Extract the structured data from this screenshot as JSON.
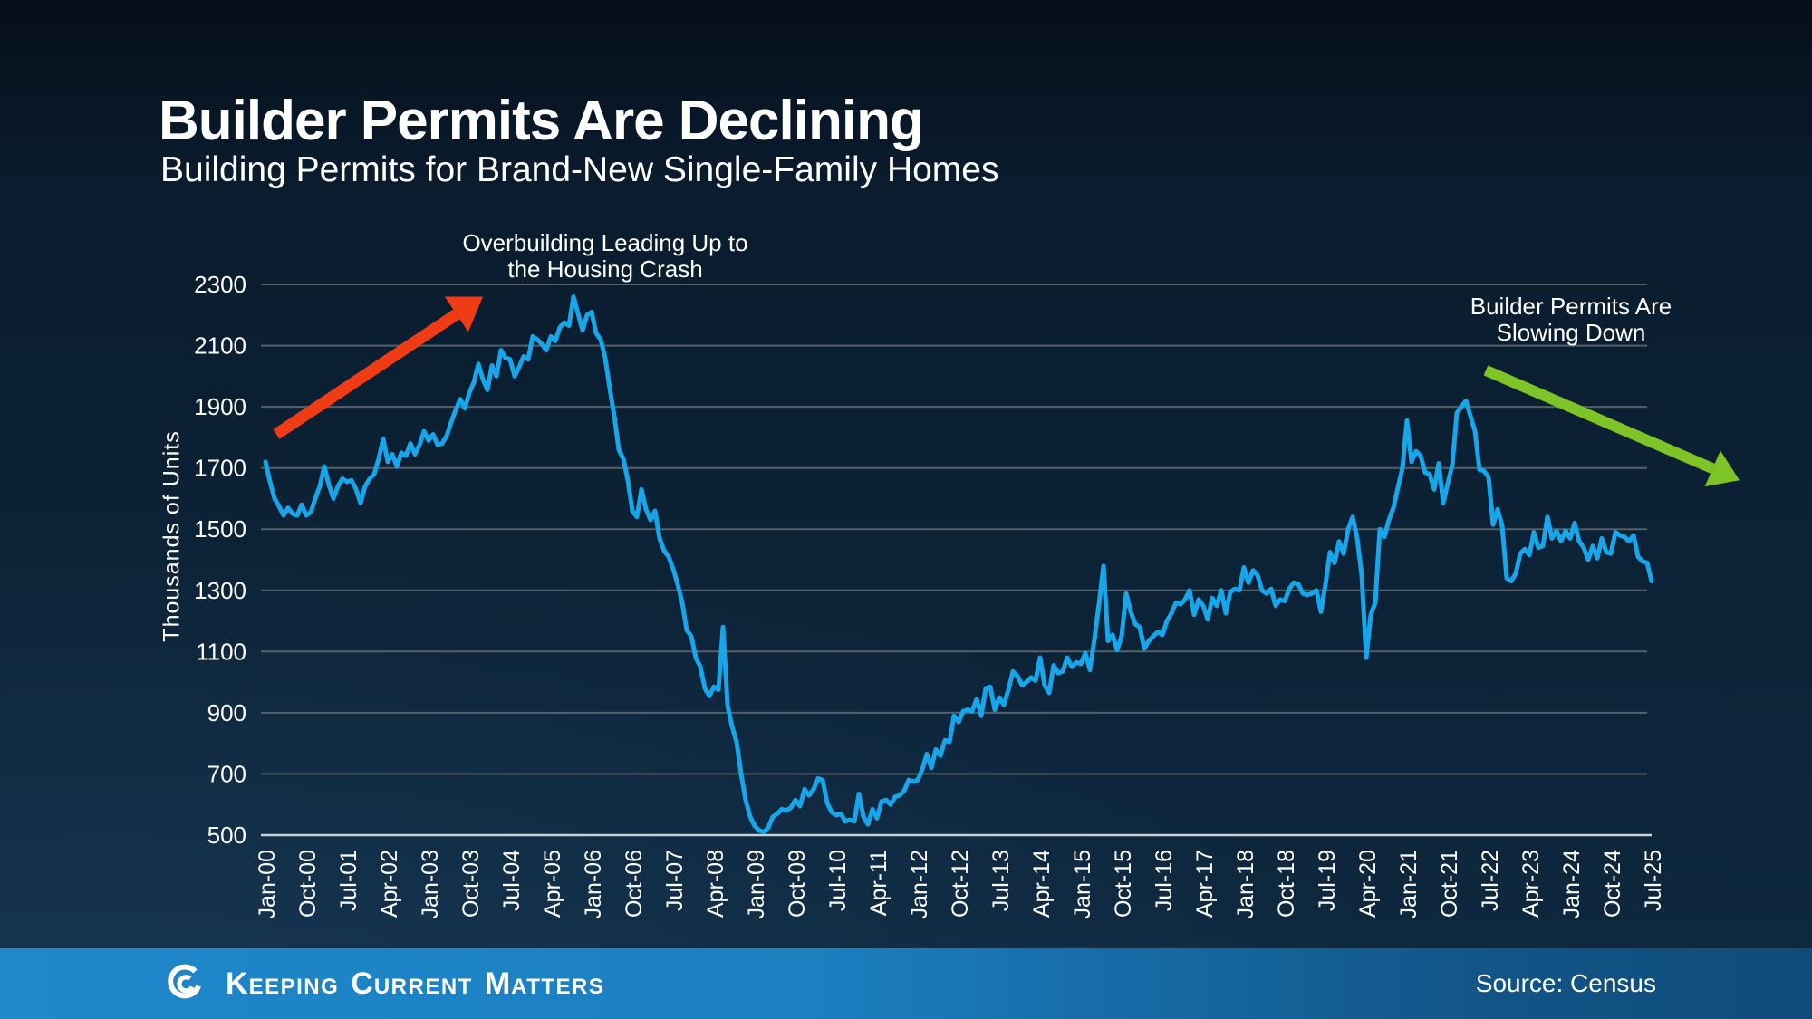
{
  "header": {
    "title": "Builder Permits Are Declining",
    "subtitle": "Building Permits for Brand-New Single-Family Homes"
  },
  "chart_data": {
    "type": "line",
    "title": "Building Permits for Brand-New Single-Family Homes",
    "xlabel": "",
    "ylabel": "Thousands of Units",
    "x_unit": "month",
    "x_range": [
      "Jan-2000",
      "Jul-2025"
    ],
    "ylim": [
      500,
      2300
    ],
    "yticks": [
      2300,
      2100,
      1900,
      1700,
      1500,
      1300,
      1100,
      900,
      700,
      500
    ],
    "grid": true,
    "legend_position": "none",
    "tick_every_months": 9,
    "tick_labels": [
      "Jan-00",
      "Oct-00",
      "Jul-01",
      "Apr-02",
      "Jan-03",
      "Oct-03",
      "Jul-04",
      "Apr-05",
      "Jan-06",
      "Oct-06",
      "Jul-07",
      "Apr-08",
      "Jan-09",
      "Oct-09",
      "Jul-10",
      "Apr-11",
      "Jan-12",
      "Oct-12",
      "Jul-13",
      "Apr-14",
      "Jan-15",
      "Oct-15",
      "Jul-16",
      "Apr-17",
      "Jan-18",
      "Oct-18",
      "Jul-19",
      "Apr-20",
      "Jan-21",
      "Oct-21",
      "Jul-22",
      "Apr-23",
      "Jan-24",
      "Oct-24",
      "Jul-25"
    ],
    "series": [
      {
        "name": "Building Permits (Thousands of Units)",
        "color": "#18a6ea",
        "values": [
          1720,
          1655,
          1600,
          1575,
          1545,
          1570,
          1550,
          1545,
          1580,
          1545,
          1555,
          1600,
          1640,
          1705,
          1645,
          1600,
          1640,
          1665,
          1655,
          1660,
          1630,
          1585,
          1640,
          1665,
          1680,
          1730,
          1795,
          1720,
          1745,
          1705,
          1750,
          1740,
          1780,
          1745,
          1775,
          1820,
          1790,
          1810,
          1775,
          1780,
          1805,
          1850,
          1890,
          1925,
          1895,
          1945,
          1980,
          2040,
          1990,
          1955,
          2035,
          2000,
          2085,
          2060,
          2055,
          2000,
          2030,
          2065,
          2055,
          2130,
          2120,
          2105,
          2085,
          2130,
          2115,
          2160,
          2175,
          2165,
          2260,
          2205,
          2150,
          2200,
          2210,
          2140,
          2120,
          2060,
          1960,
          1870,
          1760,
          1730,
          1660,
          1560,
          1540,
          1630,
          1565,
          1530,
          1560,
          1470,
          1430,
          1410,
          1370,
          1320,
          1260,
          1170,
          1150,
          1080,
          1050,
          980,
          955,
          985,
          975,
          1180,
          925,
          855,
          805,
          700,
          615,
          560,
          530,
          515,
          510,
          525,
          560,
          570,
          585,
          580,
          590,
          615,
          595,
          650,
          630,
          650,
          685,
          680,
          605,
          575,
          565,
          570,
          545,
          550,
          545,
          635,
          560,
          535,
          585,
          555,
          610,
          615,
          600,
          625,
          630,
          645,
          680,
          675,
          680,
          715,
          765,
          720,
          780,
          760,
          810,
          805,
          890,
          870,
          905,
          910,
          905,
          945,
          890,
          980,
          985,
          910,
          950,
          925,
          975,
          1035,
          1020,
          990,
          1000,
          1015,
          1005,
          1080,
          990,
          965,
          1055,
          1030,
          1035,
          1080,
          1050,
          1065,
          1060,
          1095,
          1040,
          1140,
          1255,
          1380,
          1135,
          1155,
          1105,
          1150,
          1290,
          1230,
          1190,
          1180,
          1110,
          1135,
          1150,
          1165,
          1155,
          1200,
          1225,
          1260,
          1255,
          1270,
          1300,
          1220,
          1270,
          1250,
          1205,
          1275,
          1250,
          1300,
          1225,
          1295,
          1305,
          1300,
          1375,
          1325,
          1365,
          1350,
          1300,
          1290,
          1305,
          1250,
          1270,
          1265,
          1305,
          1325,
          1320,
          1290,
          1285,
          1290,
          1300,
          1230,
          1320,
          1425,
          1390,
          1460,
          1420,
          1500,
          1540,
          1470,
          1350,
          1080,
          1220,
          1260,
          1500,
          1475,
          1530,
          1570,
          1635,
          1700,
          1855,
          1720,
          1755,
          1740,
          1685,
          1680,
          1630,
          1715,
          1585,
          1650,
          1710,
          1880,
          1900,
          1920,
          1870,
          1820,
          1695,
          1690,
          1670,
          1515,
          1565,
          1510,
          1340,
          1330,
          1355,
          1420,
          1435,
          1415,
          1490,
          1440,
          1445,
          1540,
          1470,
          1495,
          1460,
          1495,
          1470,
          1520,
          1460,
          1440,
          1400,
          1445,
          1405,
          1470,
          1425,
          1420,
          1490,
          1480,
          1475,
          1460,
          1480,
          1410,
          1395,
          1390,
          1330
        ]
      }
    ],
    "annotations": [
      {
        "id": "overbuilding",
        "lines": [
          "Overbuilding Leading Up to",
          "the Housing Crash"
        ],
        "arrow": {
          "from": {
            "month_index": 2.4,
            "value": 1810
          },
          "to": {
            "month_index": 48,
            "value": 2260
          },
          "color": "#f03c14",
          "width": 13
        }
      },
      {
        "id": "slowing",
        "lines": [
          "Builder Permits Are",
          "Slowing Down"
        ],
        "arrow": {
          "from": {
            "month_index": 269.4,
            "value": 2019
          },
          "to": {
            "month_index": 325.4,
            "value": 1660
          },
          "color": "#7ec427",
          "width": 12
        }
      }
    ],
    "colors": {
      "line": "#18a6ea",
      "grid": "#566068",
      "baseline": "#c7d1d8",
      "tick_text": "#ffffff"
    }
  },
  "footer": {
    "brand_parts": [
      "K",
      "EEPING",
      "C",
      "URRENT",
      "M",
      "ATTERS"
    ],
    "source": "Source: Census"
  }
}
